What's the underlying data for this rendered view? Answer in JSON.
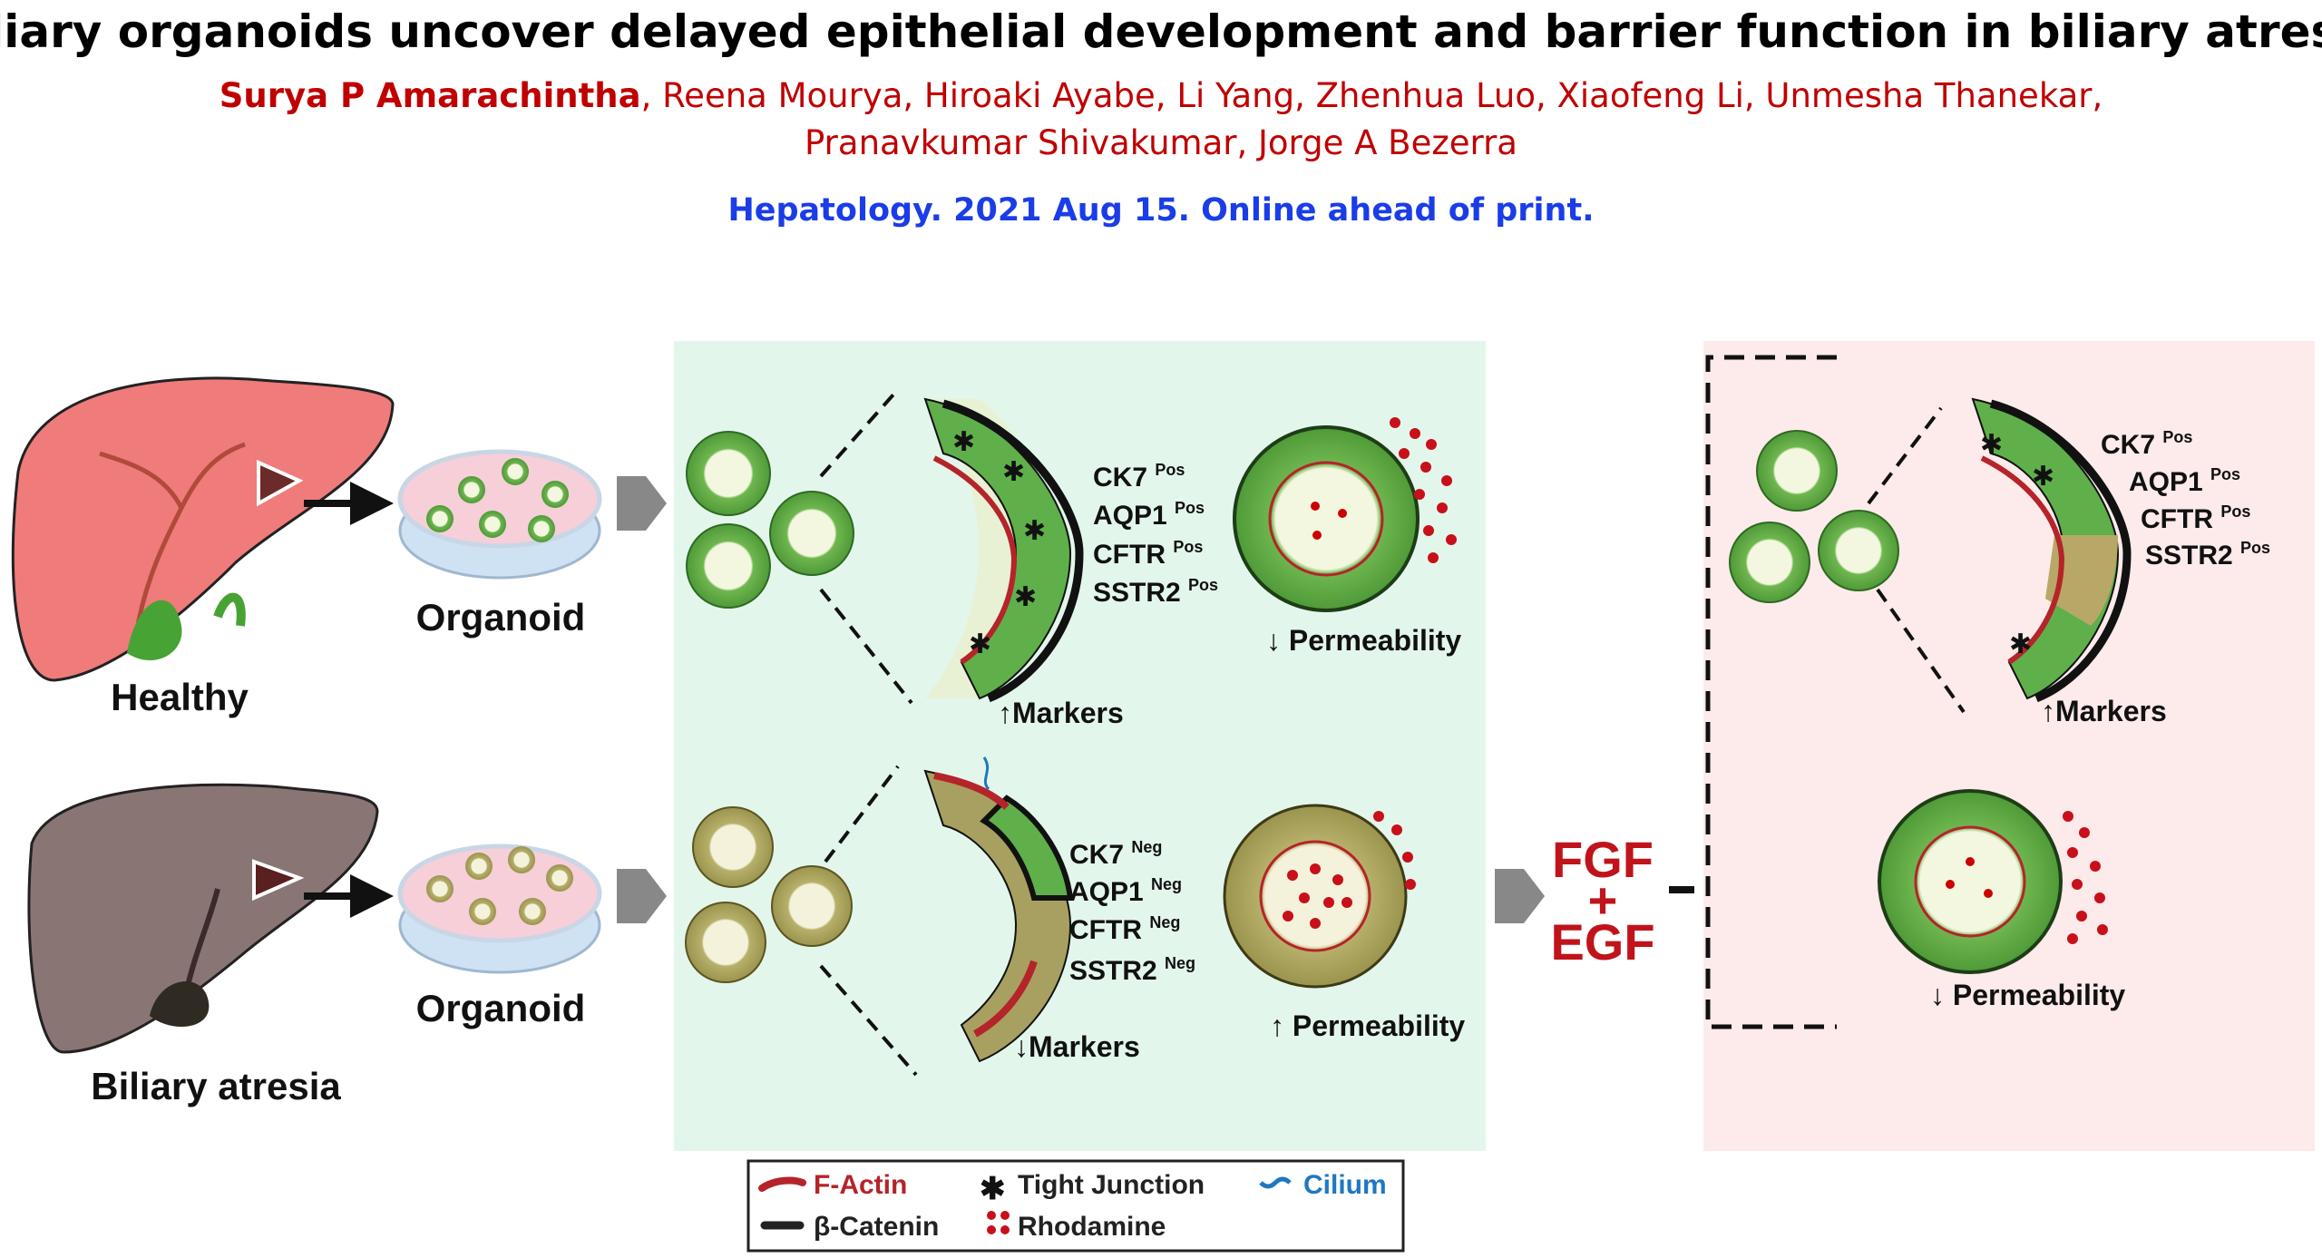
{
  "header": {
    "title": "Biliary organoids uncover delayed epithelial development and barrier function in biliary atresia",
    "first_author": "Surya P Amarachintha",
    "authors_line1_rest": ", Reena Mourya, Hiroaki Ayabe, Li Yang, Zhenhua Luo, Xiaofeng Li, Unmesha Thanekar,",
    "authors_line2": "Pranavkumar Shivakumar, Jorge A Bezerra",
    "journal": "Hepatology. 2021 Aug 15. Online ahead of print."
  },
  "left": {
    "healthy_label": "Healthy",
    "atresia_label": "Biliary atresia",
    "organoid_label": "Organoid"
  },
  "healthy_panel": {
    "markers": [
      {
        "name": "CK7",
        "sup": "Pos"
      },
      {
        "name": "AQP1",
        "sup": "Pos"
      },
      {
        "name": "CFTR",
        "sup": "Pos"
      },
      {
        "name": "SSTR2",
        "sup": "Pos"
      }
    ],
    "markers_label": "Markers",
    "markers_direction": "up",
    "permeability_label": "Permeability",
    "permeability_direction": "down"
  },
  "atresia_panel": {
    "markers": [
      {
        "name": "CK7",
        "sup": "Neg"
      },
      {
        "name": "AQP1",
        "sup": "Neg"
      },
      {
        "name": "CFTR",
        "sup": "Neg"
      },
      {
        "name": "SSTR2",
        "sup": "Neg"
      }
    ],
    "markers_label": "Markers",
    "markers_direction": "down",
    "permeability_label": "Permeability",
    "permeability_direction": "up"
  },
  "treatment": {
    "line1": "FGF",
    "line2": "+",
    "line3": "EGF"
  },
  "treated_panel": {
    "markers": [
      {
        "name": "CK7",
        "sup": "Pos"
      },
      {
        "name": "AQP1",
        "sup": "Pos"
      },
      {
        "name": "CFTR",
        "sup": "Pos"
      },
      {
        "name": "SSTR2",
        "sup": "Pos"
      }
    ],
    "markers_label": "Markers",
    "markers_direction": "up",
    "permeability_label": "Permeability",
    "permeability_direction": "down"
  },
  "legend": {
    "f_actin": "F-Actin",
    "tight_junction": "Tight Junction",
    "cilium": "Cilium",
    "beta_catenin": "β-Catenin",
    "rhodamine": "Rhodamine"
  },
  "colors": {
    "title": "#000000",
    "authors": "#c00000",
    "journal": "#1a3de8",
    "green_panel": "#e3f6ec",
    "pink_panel": "#fdeaea",
    "f_actin": "#b5242a",
    "cilium": "#1f78c1",
    "treatment": "#c0131b"
  }
}
